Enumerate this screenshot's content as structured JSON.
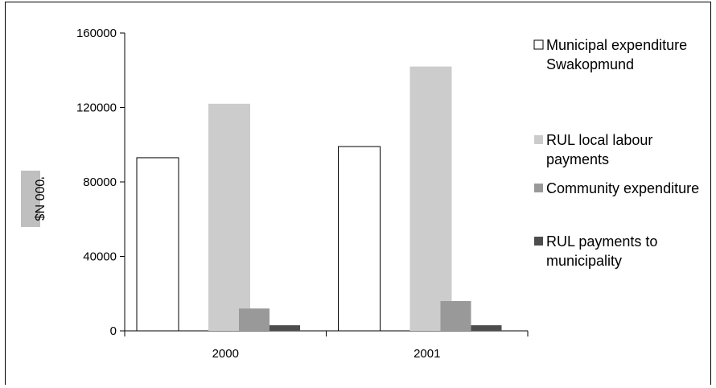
{
  "chart_data": {
    "type": "bar",
    "categories": [
      "2000",
      "2001"
    ],
    "series": [
      {
        "name": "Municipal expenditure Swakopmund",
        "legend_lines": [
          "Municipal expenditure",
          "Swakopmund"
        ],
        "values": [
          93000,
          99000
        ],
        "color": "#ffffff"
      },
      {
        "name": "RUL local labour payments",
        "legend_lines": [
          "RUL local labour",
          "payments"
        ],
        "values": [
          122000,
          142000
        ],
        "color": "#cccccc"
      },
      {
        "name": "Community expenditure",
        "legend_lines": [
          "Community expenditure"
        ],
        "values": [
          12000,
          16000
        ],
        "color": "#999999"
      },
      {
        "name": "RUL payments to municipality",
        "legend_lines": [
          "RUL payments to",
          "municipality"
        ],
        "values": [
          3000,
          3000
        ],
        "color": "#4d4d4d"
      }
    ],
    "ylabel": "'000 N$",
    "ylim": [
      0,
      160000
    ],
    "yticks": [
      "0",
      "40000",
      "80000",
      "120000",
      "160000"
    ],
    "grid": false,
    "legend_position": "right"
  }
}
